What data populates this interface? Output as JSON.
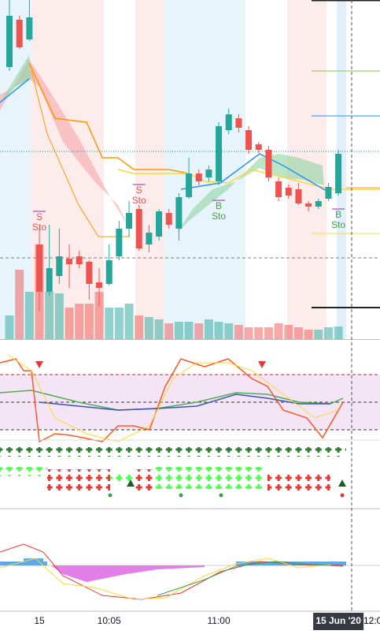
{
  "chart_data": {
    "type": "candlestick",
    "categories": [
      null,
      null,
      null,
      "15",
      null,
      null,
      null,
      null,
      null,
      null,
      "10:05",
      null,
      null,
      null,
      null,
      null,
      null,
      null,
      null,
      null,
      null,
      "11:00",
      null,
      null,
      null,
      null,
      null,
      null,
      null,
      null,
      null,
      null,
      null,
      "15 Jun '20"
    ],
    "next_tick": "12:0",
    "open": [
      345,
      405,
      380,
      120,
      60,
      80,
      102,
      105,
      98,
      72,
      70,
      105,
      140,
      165,
      120,
      130,
      160,
      140,
      180,
      210,
      205,
      200,
      265,
      280,
      265,
      247,
      240,
      200,
      192,
      190,
      172,
      168,
      178,
      185
    ],
    "high": [
      430,
      410,
      430,
      140,
      145,
      140,
      120,
      112,
      100,
      90,
      120,
      150,
      175,
      170,
      145,
      165,
      165,
      185,
      230,
      215,
      220,
      275,
      292,
      285,
      270,
      250,
      245,
      205,
      196,
      198,
      175,
      178,
      198,
      240
    ],
    "low": [
      340,
      368,
      378,
      35,
      55,
      70,
      65,
      90,
      50,
      42,
      68,
      100,
      130,
      112,
      110,
      125,
      140,
      125,
      178,
      195,
      200,
      195,
      260,
      262,
      235,
      236,
      200,
      175,
      178,
      170,
      162,
      165,
      175,
      182
    ],
    "close": [
      410,
      370,
      408,
      60,
      90,
      105,
      95,
      95,
      70,
      65,
      100,
      140,
      160,
      115,
      135,
      162,
      145,
      180,
      210,
      200,
      215,
      270,
      285,
      268,
      240,
      240,
      205,
      180,
      182,
      172,
      168,
      175,
      193,
      235
    ],
    "volume": [
      30,
      88,
      60,
      120,
      60,
      58,
      40,
      45,
      45,
      60,
      40,
      40,
      45,
      30,
      28,
      25,
      20,
      22,
      22,
      20,
      25,
      22,
      20,
      18,
      15,
      15,
      15,
      20,
      18,
      15,
      12,
      12,
      15,
      16
    ],
    "up_color": "#26a69a",
    "down_color": "#ef5350",
    "ylim": [
      0,
      430
    ],
    "y2lim": [
      0,
      430
    ],
    "annotations": [
      {
        "index": 3,
        "lines": [
          "S",
          "Sto"
        ],
        "color": "#ef5350",
        "level": 162
      },
      {
        "index": 13,
        "lines": [
          "S",
          "Sto"
        ],
        "color": "#ef5350",
        "level": 196
      },
      {
        "index": 21,
        "lines": [
          "B",
          "Sto"
        ],
        "color": "#43a047",
        "level": 176
      },
      {
        "index": 33,
        "lines": [
          "B",
          "Sto"
        ],
        "color": "#43a047",
        "level": 165
      }
    ]
  }
}
